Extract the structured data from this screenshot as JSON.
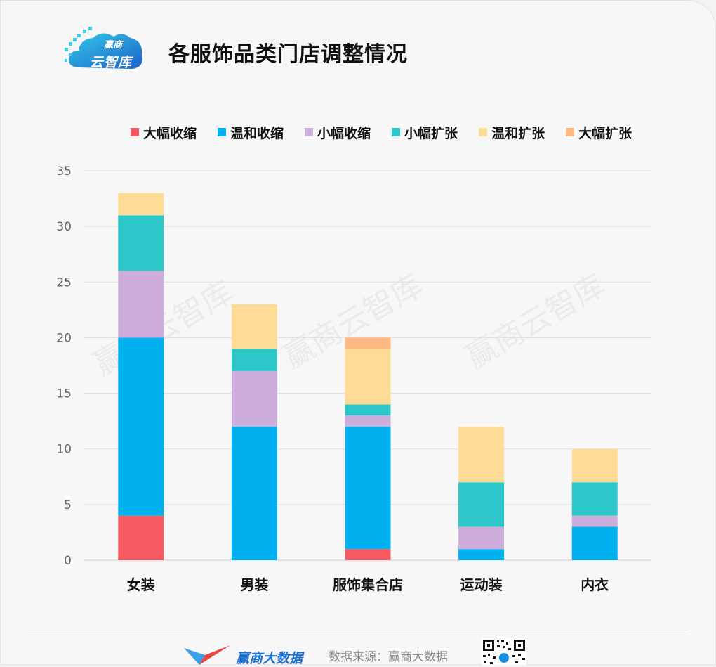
{
  "header": {
    "logo_text": "云智库",
    "logo_sub": "赢商",
    "title": "各服饰品类门店调整情况"
  },
  "watermark": "赢商云智库",
  "footer": {
    "brand": "赢商大数据",
    "source": "数据来源：赢商大数据"
  },
  "chart_data": {
    "type": "bar",
    "stacked": true,
    "title": "各服饰品类门店调整情况",
    "categories": [
      "女装",
      "男装",
      "服饰集合店",
      "运动装",
      "内衣"
    ],
    "ylim": [
      0,
      35
    ],
    "yticks": [
      0,
      5,
      10,
      15,
      20,
      25,
      30,
      35
    ],
    "grid": true,
    "legend_position": "top",
    "series": [
      {
        "name": "大幅收缩",
        "color": "#f65a60",
        "values": [
          4,
          0,
          1,
          0,
          0
        ]
      },
      {
        "name": "温和收缩",
        "color": "#01b0ef",
        "values": [
          16,
          12,
          11,
          1,
          3
        ]
      },
      {
        "name": "小幅收缩",
        "color": "#cdaedb",
        "values": [
          6,
          5,
          1,
          2,
          1
        ]
      },
      {
        "name": "小幅扩张",
        "color": "#2ec7c9",
        "values": [
          5,
          2,
          1,
          4,
          3
        ]
      },
      {
        "name": "温和扩张",
        "color": "#fedc96",
        "values": [
          2,
          4,
          5,
          5,
          3
        ]
      },
      {
        "name": "大幅扩张",
        "color": "#fdb982",
        "values": [
          0,
          0,
          1,
          0,
          0
        ]
      }
    ]
  }
}
